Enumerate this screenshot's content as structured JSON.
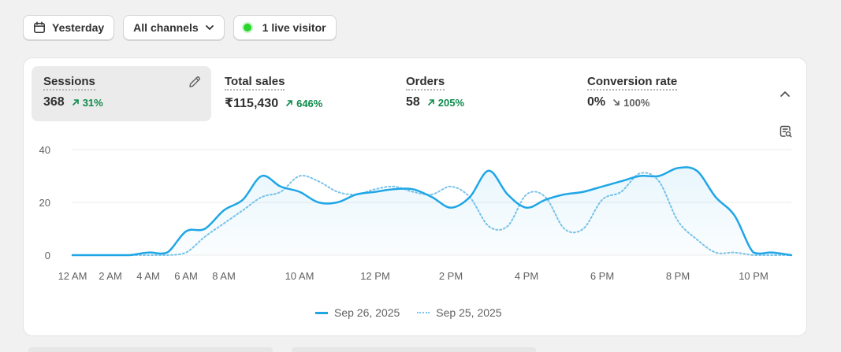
{
  "toolbar": {
    "date_label": "Yesterday",
    "channels_label": "All channels",
    "live_label": "1 live visitor"
  },
  "metrics": [
    {
      "label": "Sessions",
      "value": "368",
      "change": "31%",
      "direction": "up",
      "active": true
    },
    {
      "label": "Total sales",
      "value": "₹115,430",
      "change": "646%",
      "direction": "up"
    },
    {
      "label": "Orders",
      "value": "58",
      "change": "205%",
      "direction": "up"
    },
    {
      "label": "Conversion rate",
      "value": "0%",
      "change": "100%",
      "direction": "down"
    }
  ],
  "colors": {
    "primary_series": "#1fa6e6",
    "comparison_series": "#7cc3e8",
    "up": "#0c8a4b",
    "live": "#29d62b"
  },
  "icons": [
    "calendar-icon",
    "chevron-down-icon",
    "live-dot-icon",
    "pencil-icon",
    "chevron-up-icon",
    "report-search-icon"
  ],
  "chart_data": {
    "type": "line",
    "x": [
      "12 AM",
      "1 AM",
      "2 AM",
      "3 AM",
      "4 AM",
      "5 AM",
      "6 AM",
      "7 AM",
      "8 AM",
      "8:30 AM",
      "9 AM",
      "9:30 AM",
      "10 AM",
      "10:30 AM",
      "11 AM",
      "11:30 AM",
      "12 PM",
      "12:30 PM",
      "1 PM",
      "1:30 PM",
      "2 PM",
      "2:30 PM",
      "3 PM",
      "3:30 PM",
      "4 PM",
      "4:30 PM",
      "5 PM",
      "5:30 PM",
      "6 PM",
      "6:30 PM",
      "7 PM",
      "7:30 PM",
      "8 PM",
      "8:30 PM",
      "9 PM",
      "9:30 PM",
      "10 PM",
      "10:30 PM",
      "11 PM"
    ],
    "x_ticks": [
      "12 AM",
      "2 AM",
      "4 AM",
      "6 AM",
      "8 AM",
      "10 AM",
      "12 PM",
      "2 PM",
      "4 PM",
      "6 PM",
      "8 PM",
      "10 PM"
    ],
    "y_ticks": [
      "0",
      "20",
      "40"
    ],
    "ylim": [
      0,
      40
    ],
    "grid": true,
    "legend_position": "bottom",
    "series": [
      {
        "name": "Sep 26, 2025",
        "style": "solid",
        "values": [
          0,
          0,
          0,
          0,
          1,
          1,
          9,
          10,
          17,
          21,
          30,
          26,
          24,
          20,
          20,
          23,
          24,
          25,
          25,
          22,
          18,
          22,
          32,
          23,
          18,
          21,
          23,
          24,
          26,
          28,
          30,
          30,
          33,
          32,
          22,
          15,
          1,
          1,
          0
        ]
      },
      {
        "name": "Sep 25, 2025",
        "style": "dotted",
        "values": [
          0,
          0,
          0,
          0,
          0,
          0,
          1,
          7,
          12,
          17,
          22,
          24,
          30,
          28,
          24,
          23,
          25,
          26,
          24,
          23,
          26,
          22,
          11,
          11,
          23,
          22,
          10,
          10,
          21,
          24,
          31,
          28,
          13,
          6,
          1,
          1,
          0,
          0,
          0
        ]
      }
    ]
  }
}
